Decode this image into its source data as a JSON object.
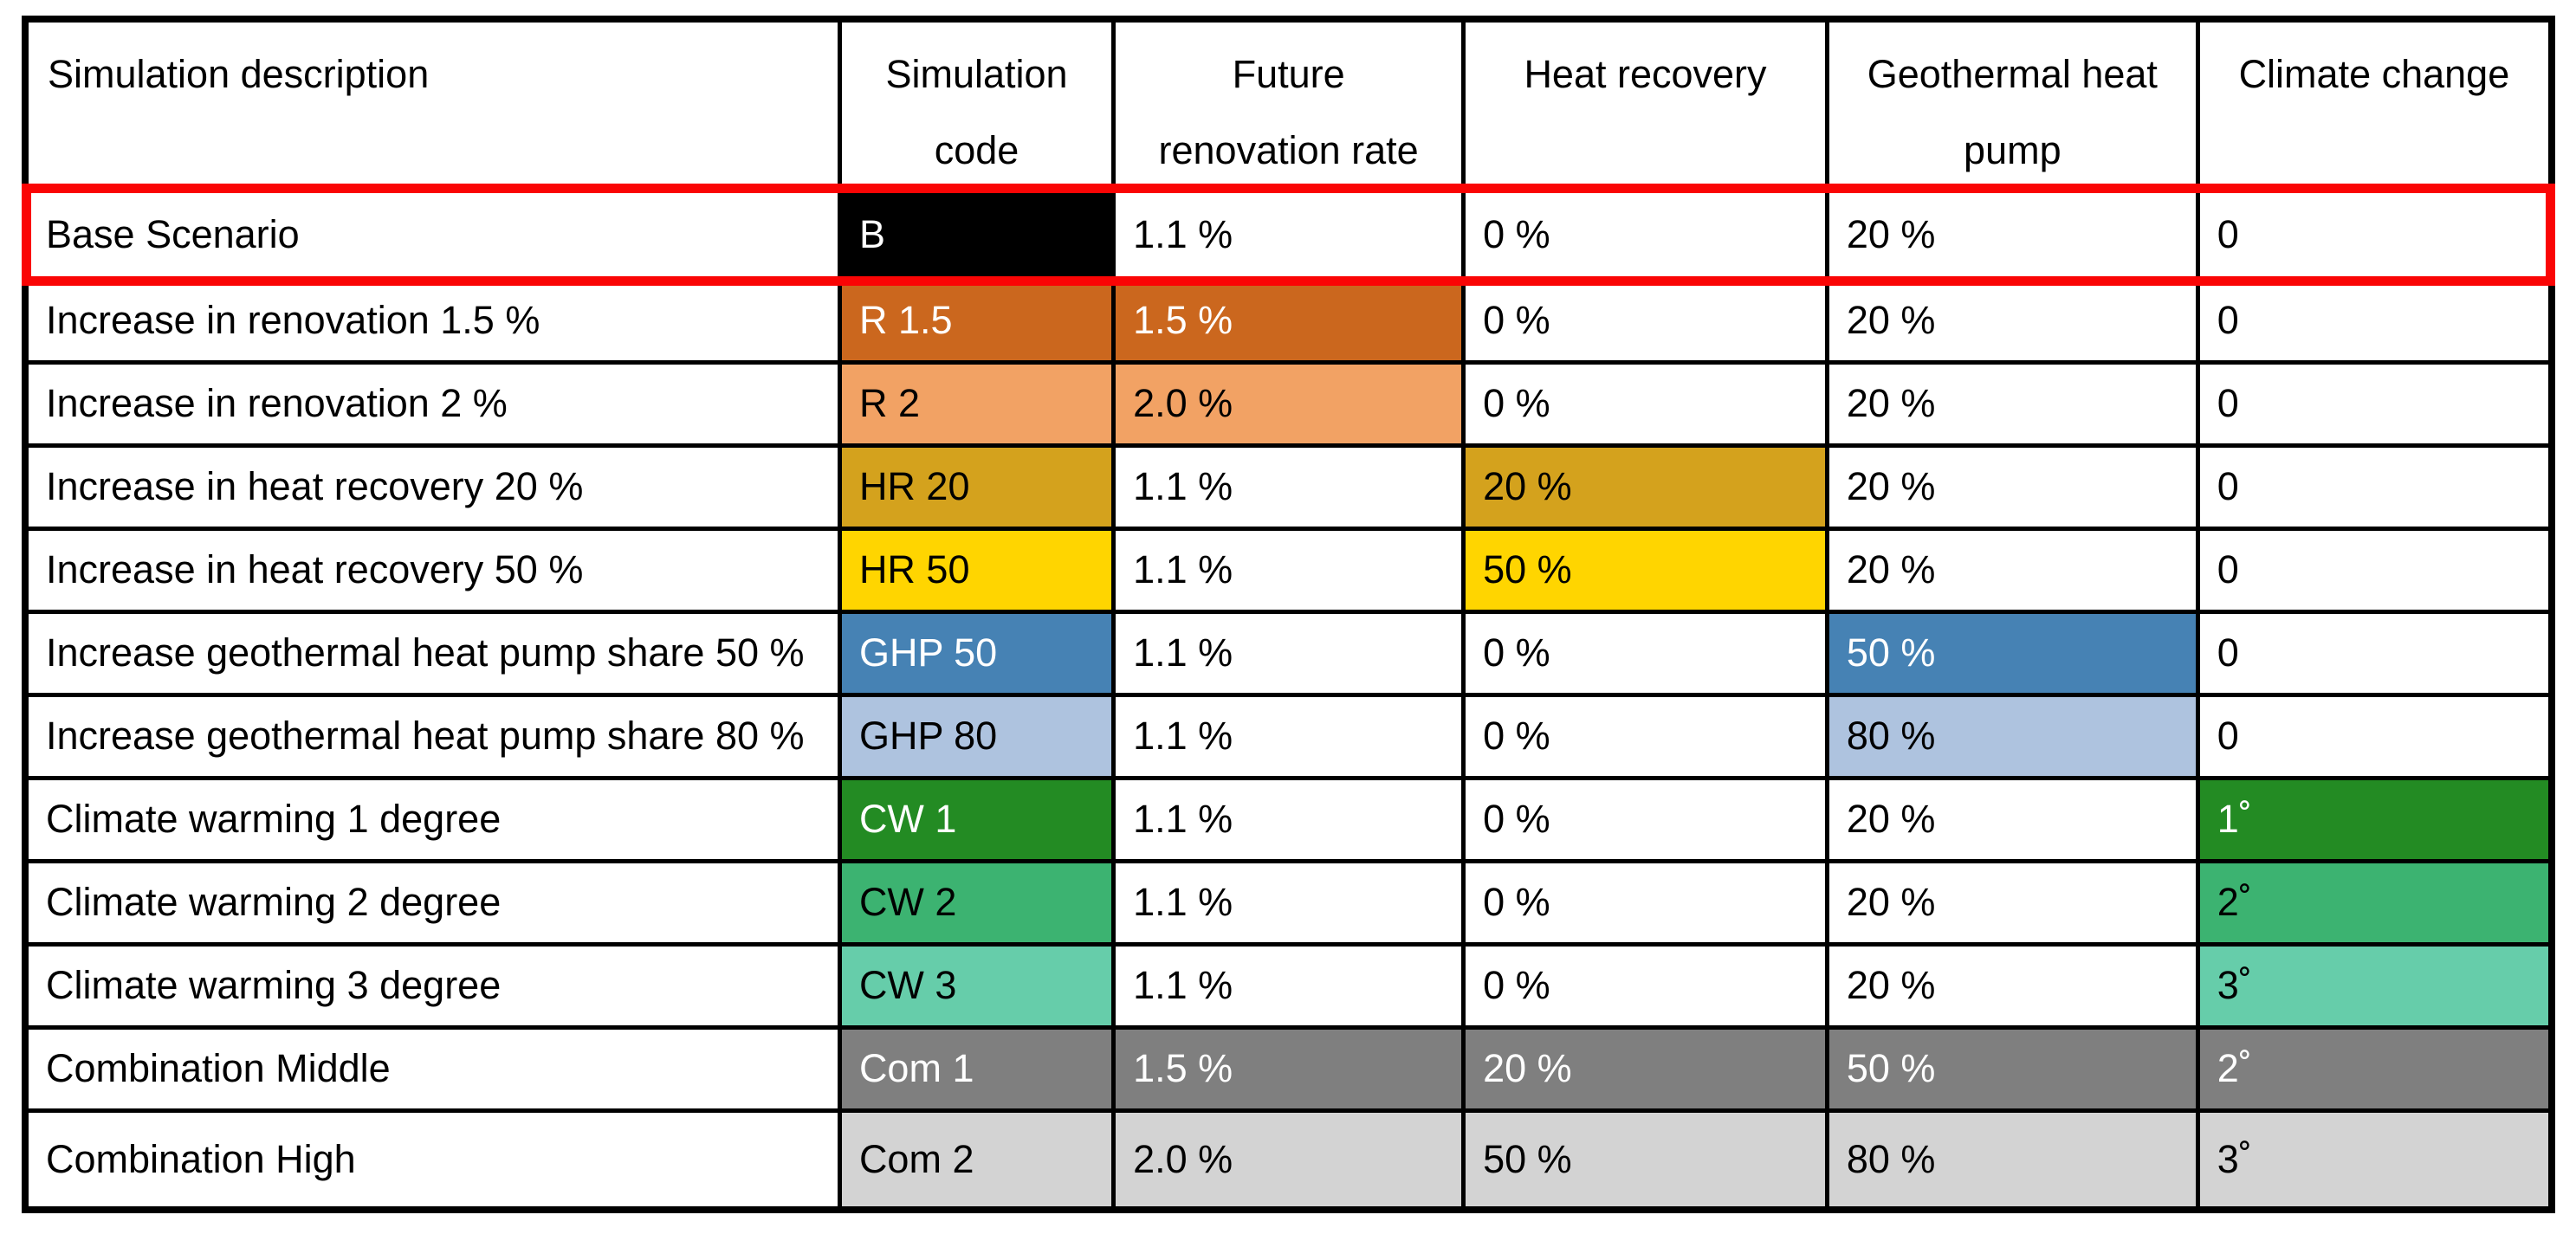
{
  "palette": {
    "black": "#000000",
    "dark_orange": "#CB671E",
    "light_orange": "#F2A264",
    "gold": "#D4A21D",
    "yellow": "#FFD500",
    "blue": "#4682B4",
    "light_blue": "#AEC3DF",
    "green_dark": "#238B23",
    "green_mid": "#3CB371",
    "green_light": "#66CDAA",
    "gray_dark": "#7F7F7F",
    "gray_light": "#D3D3D3",
    "border_black": "#000000",
    "page_background": "#FFFFFF",
    "ink_black": "#000000",
    "ink_white": "#FFFFFF"
  },
  "highlight": {
    "color": "#FA0505",
    "target_row_code": "B"
  },
  "table": {
    "column_widths_pct": [
      32.24,
      10.84,
      13.85,
      14.39,
      14.67,
      14.01
    ],
    "header": [
      {
        "key": "simulation-description",
        "align": "left",
        "lines": [
          "Simulation description"
        ]
      },
      {
        "key": "simulation-code",
        "align": "center",
        "lines": [
          "Simulation",
          "code"
        ]
      },
      {
        "key": "future-renovation-rate",
        "align": "center",
        "lines": [
          "Future",
          "renovation rate"
        ]
      },
      {
        "key": "heat-recovery",
        "align": "center",
        "lines": [
          "Heat recovery"
        ]
      },
      {
        "key": "geothermal-heat-pump",
        "align": "center",
        "lines": [
          "Geothermal heat",
          "pump"
        ]
      },
      {
        "key": "climate-change",
        "align": "center",
        "lines": [
          "Climate change"
        ]
      }
    ],
    "rows": [
      {
        "highlighted": true,
        "cells": [
          {
            "text": "Base Scenario"
          },
          {
            "text": "B",
            "fill": "black",
            "ink": "white"
          },
          {
            "text": "1.1 %"
          },
          {
            "text": "0 %"
          },
          {
            "text": "20 %"
          },
          {
            "text": "0"
          }
        ]
      },
      {
        "cells": [
          {
            "text": "Increase in renovation 1.5 %"
          },
          {
            "text": "R 1.5",
            "fill": "dark_orange",
            "ink": "white"
          },
          {
            "text": "1.5 %",
            "fill": "dark_orange",
            "ink": "white"
          },
          {
            "text": "0 %"
          },
          {
            "text": "20 %"
          },
          {
            "text": "0"
          }
        ]
      },
      {
        "cells": [
          {
            "text": "Increase in renovation 2 %"
          },
          {
            "text": "R 2",
            "fill": "light_orange",
            "ink": "black"
          },
          {
            "text": "2.0 %",
            "fill": "light_orange",
            "ink": "black"
          },
          {
            "text": "0 %"
          },
          {
            "text": "20 %"
          },
          {
            "text": "0"
          }
        ]
      },
      {
        "cells": [
          {
            "text": "Increase in heat recovery 20 %"
          },
          {
            "text": "HR 20",
            "fill": "gold",
            "ink": "black"
          },
          {
            "text": "1.1 %"
          },
          {
            "text": "20 %",
            "fill": "gold",
            "ink": "black"
          },
          {
            "text": "20 %"
          },
          {
            "text": "0"
          }
        ]
      },
      {
        "cells": [
          {
            "text": "Increase in heat recovery 50 %"
          },
          {
            "text": "HR 50",
            "fill": "yellow",
            "ink": "black"
          },
          {
            "text": "1.1 %"
          },
          {
            "text": "50 %",
            "fill": "yellow",
            "ink": "black"
          },
          {
            "text": "20 %"
          },
          {
            "text": "0"
          }
        ]
      },
      {
        "cells": [
          {
            "text": "Increase geothermal heat pump share 50 %"
          },
          {
            "text": "GHP 50",
            "fill": "blue",
            "ink": "white"
          },
          {
            "text": "1.1 %"
          },
          {
            "text": "0 %"
          },
          {
            "text": "50 %",
            "fill": "blue",
            "ink": "white"
          },
          {
            "text": "0"
          }
        ]
      },
      {
        "cells": [
          {
            "text": "Increase geothermal heat pump share 80 %"
          },
          {
            "text": "GHP 80",
            "fill": "light_blue",
            "ink": "black"
          },
          {
            "text": "1.1 %"
          },
          {
            "text": "0 %"
          },
          {
            "text": "80 %",
            "fill": "light_blue",
            "ink": "black"
          },
          {
            "text": "0"
          }
        ]
      },
      {
        "cells": [
          {
            "text": "Climate warming 1 degree"
          },
          {
            "text": "CW 1",
            "fill": "green_dark",
            "ink": "white"
          },
          {
            "text": "1.1 %"
          },
          {
            "text": "0 %"
          },
          {
            "text": "20 %"
          },
          {
            "text": "1˚",
            "fill": "green_dark",
            "ink": "white"
          }
        ]
      },
      {
        "cells": [
          {
            "text": "Climate warming 2 degree"
          },
          {
            "text": "CW 2",
            "fill": "green_mid",
            "ink": "black"
          },
          {
            "text": "1.1 %"
          },
          {
            "text": "0 %"
          },
          {
            "text": "20 %"
          },
          {
            "text": "2˚",
            "fill": "green_mid",
            "ink": "black"
          }
        ]
      },
      {
        "cells": [
          {
            "text": "Climate warming 3 degree"
          },
          {
            "text": "CW 3",
            "fill": "green_light",
            "ink": "black"
          },
          {
            "text": "1.1 %"
          },
          {
            "text": "0 %"
          },
          {
            "text": "20 %"
          },
          {
            "text": "3˚",
            "fill": "green_light",
            "ink": "black"
          }
        ]
      },
      {
        "cells": [
          {
            "text": "Combination Middle"
          },
          {
            "text": "Com 1",
            "fill": "gray_dark",
            "ink": "white"
          },
          {
            "text": "1.5 %",
            "fill": "gray_dark",
            "ink": "white"
          },
          {
            "text": "20 %",
            "fill": "gray_dark",
            "ink": "white"
          },
          {
            "text": "50 %",
            "fill": "gray_dark",
            "ink": "white"
          },
          {
            "text": "2˚",
            "fill": "gray_dark",
            "ink": "white"
          }
        ]
      },
      {
        "cells": [
          {
            "text": "Combination High"
          },
          {
            "text": "Com 2",
            "fill": "gray_light",
            "ink": "black"
          },
          {
            "text": "2.0 %",
            "fill": "gray_light",
            "ink": "black"
          },
          {
            "text": "50 %",
            "fill": "gray_light",
            "ink": "black"
          },
          {
            "text": "80 %",
            "fill": "gray_light",
            "ink": "black"
          },
          {
            "text": "3˚",
            "fill": "gray_light",
            "ink": "black"
          }
        ]
      }
    ]
  }
}
